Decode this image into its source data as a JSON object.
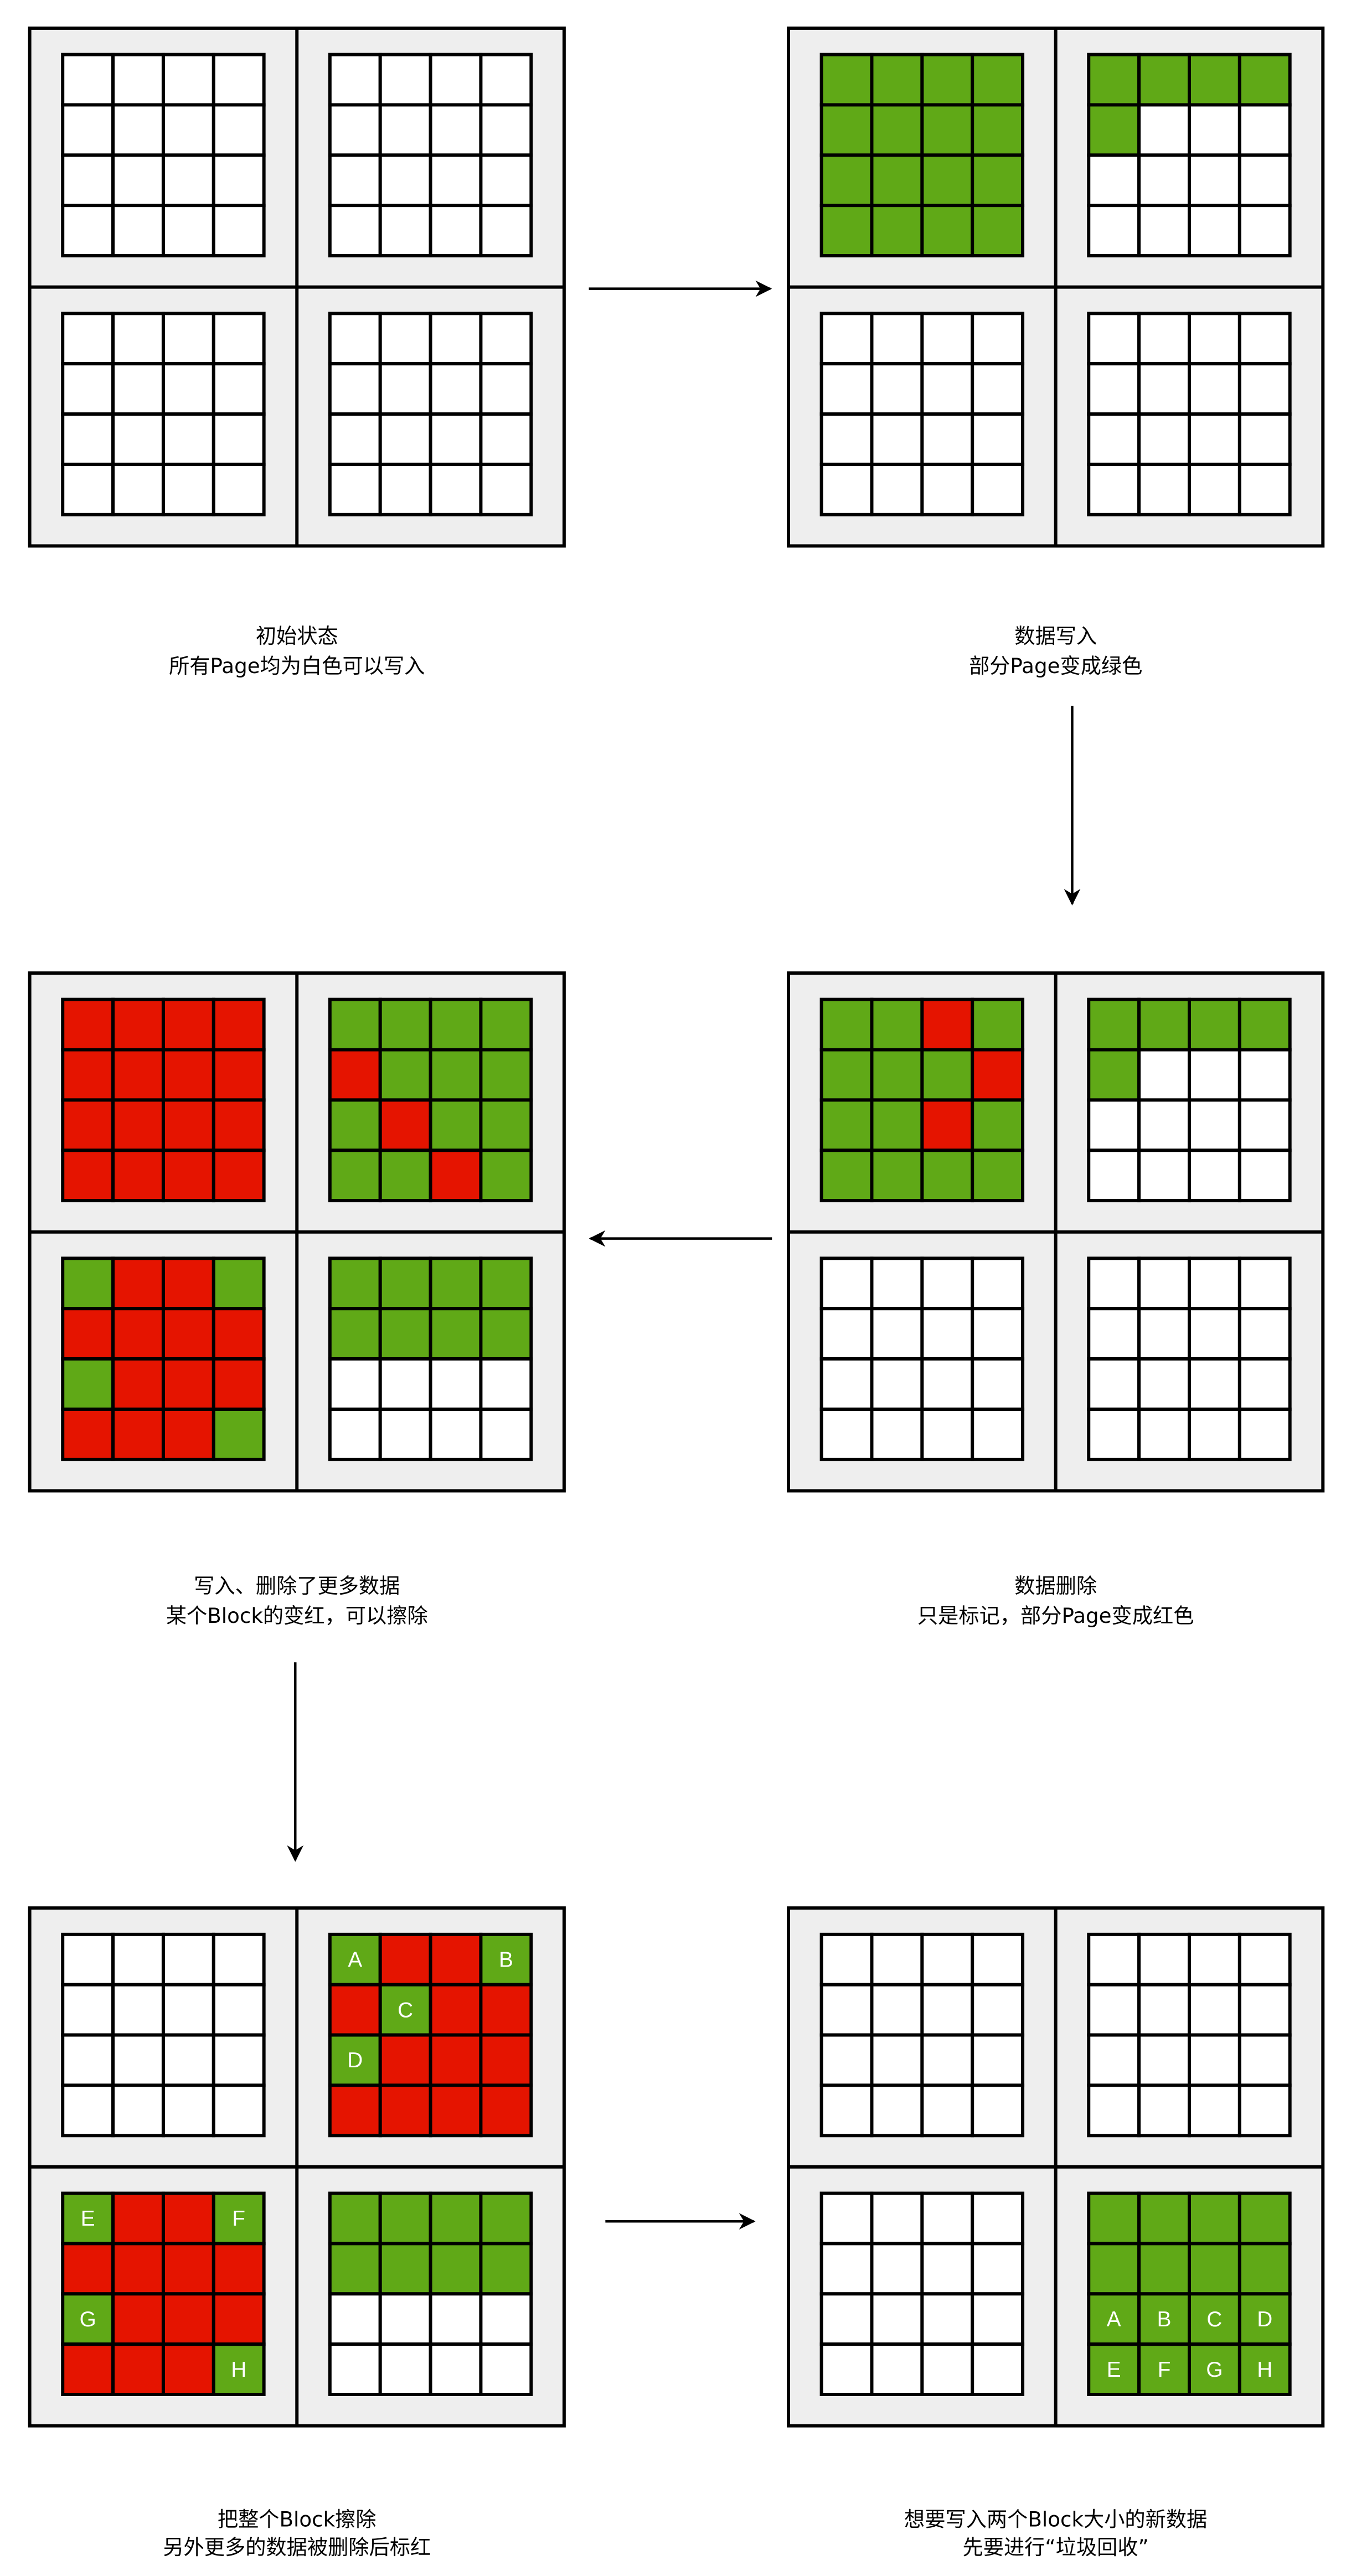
{
  "colors": {
    "white": "#ffffff",
    "green": "#60a917",
    "red": "#e51400",
    "panel_bg": "#eeeeee",
    "stroke": "#000000"
  },
  "legend_codes": {
    "W": "free page (white)",
    "G": "written page (green)",
    "R": "deleted page (red)"
  },
  "panels": [
    {
      "caption": [
        "初始状态",
        "所有Page均为白色可以写入"
      ],
      "blocks": [
        [
          "WWWW",
          "WWWW",
          "WWWW",
          "WWWW"
        ],
        [
          "WWWW",
          "WWWW",
          "WWWW",
          "WWWW"
        ],
        [
          "WWWW",
          "WWWW",
          "WWWW",
          "WWWW"
        ],
        [
          "WWWW",
          "WWWW",
          "WWWW",
          "WWWW"
        ]
      ]
    },
    {
      "caption": [
        "数据写入",
        "部分Page变成绿色"
      ],
      "blocks": [
        [
          "GGGG",
          "GGGG",
          "GGGG",
          "GGGG"
        ],
        [
          "GGGG",
          "GWWW",
          "WWWW",
          "WWWW"
        ],
        [
          "WWWW",
          "WWWW",
          "WWWW",
          "WWWW"
        ],
        [
          "WWWW",
          "WWWW",
          "WWWW",
          "WWWW"
        ]
      ]
    },
    {
      "caption": [
        "数据删除",
        "只是标记，部分Page变成红色"
      ],
      "blocks": [
        [
          "GGRG",
          "GGGR",
          "GGRG",
          "GGGG"
        ],
        [
          "GGGG",
          "GWWW",
          "WWWW",
          "WWWW"
        ],
        [
          "WWWW",
          "WWWW",
          "WWWW",
          "WWWW"
        ],
        [
          "WWWW",
          "WWWW",
          "WWWW",
          "WWWW"
        ]
      ]
    },
    {
      "caption": [
        "写入、删除了更多数据",
        "某个Block的变红，可以擦除"
      ],
      "blocks": [
        [
          "RRRR",
          "RRRR",
          "RRRR",
          "RRRR"
        ],
        [
          "GGGG",
          "RGGG",
          "GRGG",
          "GGRG"
        ],
        [
          "GRRG",
          "RRRR",
          "GRRR",
          "RRRG"
        ],
        [
          "GGGG",
          "GGGG",
          "WWWW",
          "WWWW"
        ]
      ]
    },
    {
      "caption": [
        "把整个Block擦除",
        "另外更多的数据被删除后标红"
      ],
      "blocks": [
        [
          "WWWW",
          "WWWW",
          "WWWW",
          "WWWW"
        ],
        [
          "GRRG",
          "RGRR",
          "GRRR",
          "RRRR"
        ],
        [
          "GRRG",
          "RRRR",
          "GRRR",
          "RRRG"
        ],
        [
          "GGGG",
          "GGGG",
          "WWWW",
          "WWWW"
        ]
      ],
      "labels": [
        {
          "block": 1,
          "row": 0,
          "col": 0,
          "text": "A"
        },
        {
          "block": 1,
          "row": 0,
          "col": 3,
          "text": "B"
        },
        {
          "block": 1,
          "row": 1,
          "col": 1,
          "text": "C"
        },
        {
          "block": 1,
          "row": 2,
          "col": 0,
          "text": "D"
        },
        {
          "block": 2,
          "row": 0,
          "col": 0,
          "text": "E"
        },
        {
          "block": 2,
          "row": 0,
          "col": 3,
          "text": "F"
        },
        {
          "block": 2,
          "row": 2,
          "col": 0,
          "text": "G"
        },
        {
          "block": 2,
          "row": 3,
          "col": 3,
          "text": "H"
        }
      ]
    },
    {
      "caption": [
        "想要写入两个Block大小的新数据",
        "先要进行“垃圾回收”"
      ],
      "blocks": [
        [
          "WWWW",
          "WWWW",
          "WWWW",
          "WWWW"
        ],
        [
          "WWWW",
          "WWWW",
          "WWWW",
          "WWWW"
        ],
        [
          "WWWW",
          "WWWW",
          "WWWW",
          "WWWW"
        ],
        [
          "GGGG",
          "GGGG",
          "GGGG",
          "GGGG"
        ]
      ],
      "labels": [
        {
          "block": 3,
          "row": 2,
          "col": 0,
          "text": "A"
        },
        {
          "block": 3,
          "row": 2,
          "col": 1,
          "text": "B"
        },
        {
          "block": 3,
          "row": 2,
          "col": 2,
          "text": "C"
        },
        {
          "block": 3,
          "row": 2,
          "col": 3,
          "text": "D"
        },
        {
          "block": 3,
          "row": 3,
          "col": 0,
          "text": "E"
        },
        {
          "block": 3,
          "row": 3,
          "col": 1,
          "text": "F"
        },
        {
          "block": 3,
          "row": 3,
          "col": 2,
          "text": "G"
        },
        {
          "block": 3,
          "row": 3,
          "col": 3,
          "text": "H"
        }
      ]
    }
  ]
}
